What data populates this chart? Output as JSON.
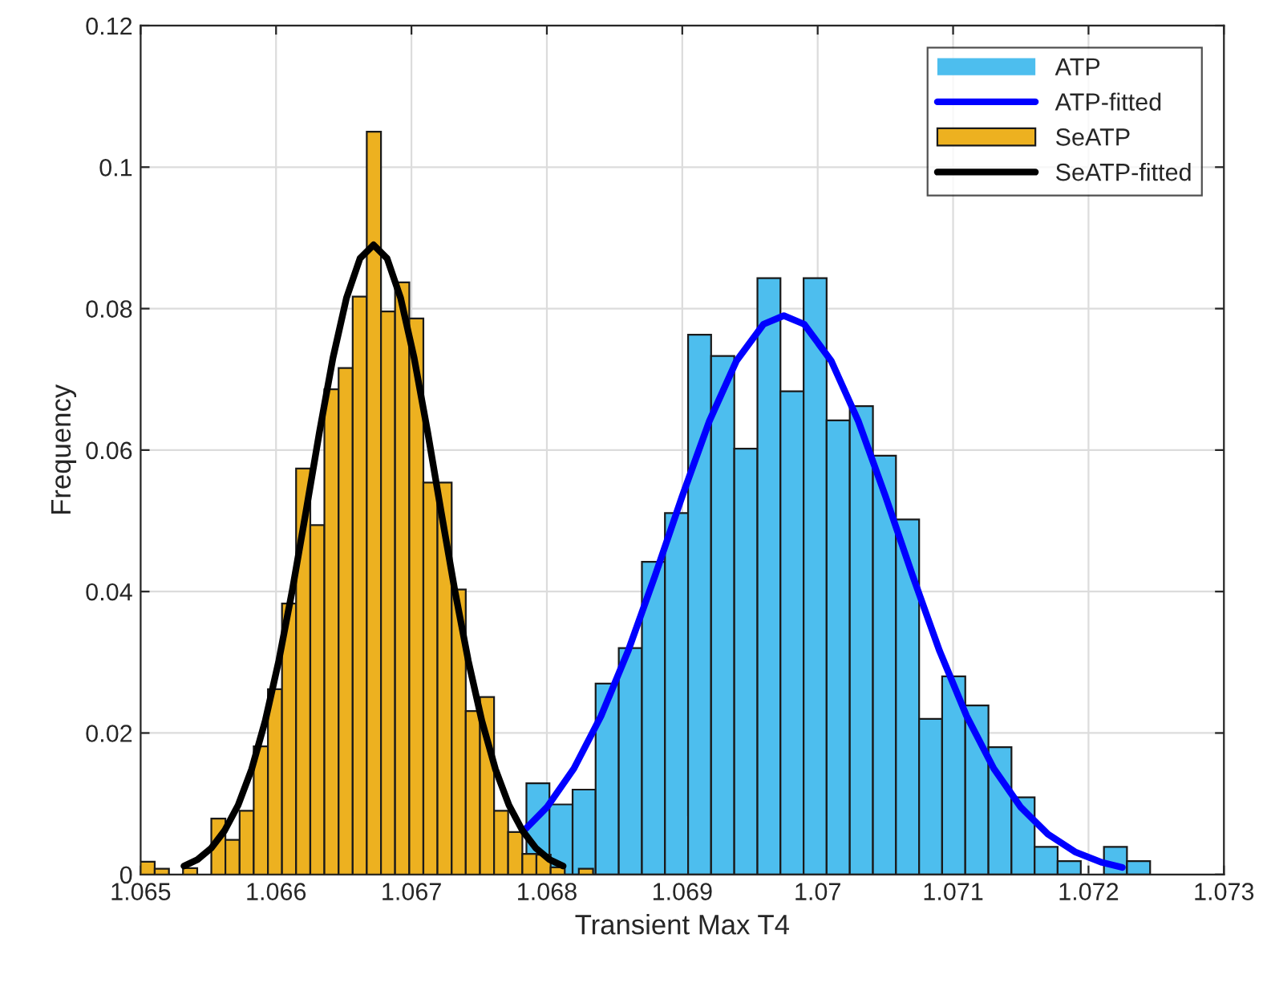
{
  "chart_data": {
    "type": "histogram",
    "xlabel": "Transient Max T4",
    "ylabel": "Frequency",
    "xlim": [
      1.065,
      1.073
    ],
    "xticks": [
      1.065,
      1.066,
      1.067,
      1.068,
      1.069,
      1.07,
      1.071,
      1.072,
      1.073
    ],
    "ylim": [
      0,
      0.12
    ],
    "yticks": [
      0,
      0.02,
      0.04,
      0.06,
      0.08,
      0.1,
      0.12
    ],
    "grid": true,
    "legend": "top right",
    "series": [
      {
        "name": "ATP",
        "type": "histogram",
        "color": "#4dbeee",
        "bins": [
          1.067678,
          1.067849,
          1.068019,
          1.06819,
          1.06836,
          1.068531,
          1.068702,
          1.068872,
          1.069043,
          1.069213,
          1.069384,
          1.069555,
          1.069725,
          1.069896,
          1.070066,
          1.070237,
          1.070408,
          1.070578,
          1.070749,
          1.070919,
          1.07109,
          1.071261,
          1.071431,
          1.071602,
          1.071772,
          1.071943,
          1.072114,
          1.072284,
          1.072455
        ],
        "values": [
          null,
          0.0129,
          0.0099,
          0.012,
          0.027,
          0.032,
          0.0442,
          0.0511,
          0.0763,
          0.0733,
          0.0602,
          0.0843,
          0.0683,
          0.0843,
          0.0642,
          0.0662,
          0.0592,
          0.0502,
          0.022,
          0.028,
          0.0239,
          0.018,
          0.0109,
          0.0039,
          0.0019,
          0,
          0.0039,
          0.0019
        ]
      },
      {
        "name": "ATP-fitted",
        "type": "line",
        "color": "#0000ff",
        "x": [
          1.06782,
          1.068,
          1.0682,
          1.0684,
          1.0686,
          1.0688,
          1.069,
          1.0692,
          1.0694,
          1.0696,
          1.06975,
          1.0699,
          1.0701,
          1.0703,
          1.0705,
          1.0707,
          1.0709,
          1.0711,
          1.0713,
          1.0715,
          1.0717,
          1.0719,
          1.0721,
          1.07225
        ],
        "values": [
          0.006,
          0.0095,
          0.015,
          0.0224,
          0.0316,
          0.0423,
          0.0535,
          0.0641,
          0.0726,
          0.0778,
          0.079,
          0.0778,
          0.0726,
          0.0641,
          0.0535,
          0.0423,
          0.0316,
          0.0224,
          0.015,
          0.0095,
          0.0057,
          0.0032,
          0.0017,
          0.001
        ]
      },
      {
        "name": "SeATP",
        "type": "histogram",
        "color": "#edb120",
        "bins": [
          1.065,
          1.065104,
          1.065209,
          1.065313,
          1.065418,
          1.065522,
          1.065626,
          1.065731,
          1.065835,
          1.06594,
          1.066044,
          1.066148,
          1.066253,
          1.066357,
          1.066462,
          1.066566,
          1.06667,
          1.066775,
          1.066879,
          1.066984,
          1.067088,
          1.067192,
          1.067297,
          1.067401,
          1.067506,
          1.06761,
          1.067714,
          1.067819,
          1.067923,
          1.068028,
          1.068132,
          1.068236,
          1.068341
        ],
        "values": [
          0.0018,
          0.0008,
          0,
          0.0009,
          0,
          0.0079,
          0.0049,
          0.009,
          0.0181,
          0.0262,
          0.0383,
          0.0574,
          0.0494,
          0.0686,
          0.0716,
          0.0817,
          0.105,
          0.0796,
          0.0837,
          0.0786,
          0.0554,
          0.0554,
          0.0403,
          0.0231,
          0.0251,
          0.009,
          0.006,
          0.0029,
          0.0028,
          0.001,
          0,
          0.0008
        ]
      },
      {
        "name": "SeATP-fitted",
        "type": "line",
        "color": "#000000",
        "x": [
          1.06532,
          1.06542,
          1.06552,
          1.06562,
          1.06572,
          1.06582,
          1.06592,
          1.06602,
          1.06612,
          1.06622,
          1.06632,
          1.06642,
          1.06652,
          1.06662,
          1.06672,
          1.06682,
          1.06692,
          1.06702,
          1.06712,
          1.06722,
          1.06732,
          1.06742,
          1.06752,
          1.06762,
          1.06772,
          1.06782,
          1.06792,
          1.06802,
          1.06812
        ],
        "values": [
          0.0012,
          0.0021,
          0.0037,
          0.0062,
          0.0098,
          0.0149,
          0.0217,
          0.0302,
          0.0402,
          0.0512,
          0.0625,
          0.073,
          0.0815,
          0.0871,
          0.089,
          0.0871,
          0.0815,
          0.073,
          0.0625,
          0.0512,
          0.0402,
          0.0302,
          0.0217,
          0.0149,
          0.0098,
          0.0062,
          0.0037,
          0.0021,
          0.0012
        ]
      }
    ]
  }
}
